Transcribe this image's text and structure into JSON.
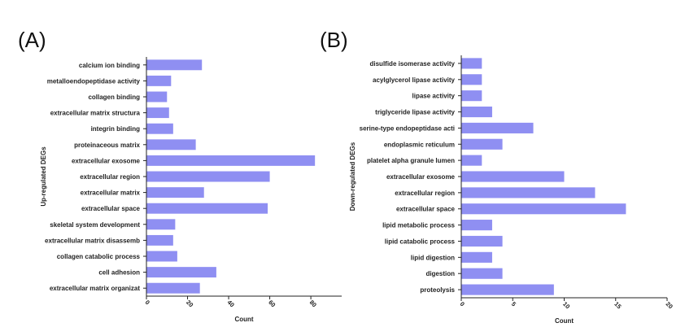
{
  "chart_data": [
    {
      "type": "bar",
      "orientation": "horizontal",
      "panel_label": "(A)",
      "ylabel": "Up-regulated DEGs",
      "xlabel": "Count",
      "xlim": [
        0,
        95
      ],
      "xticks": [
        0,
        20,
        40,
        60,
        80
      ],
      "categories": [
        "calcium ion binding",
        "metalloendopeptidase activity",
        "collagen binding",
        "extracellular matrix structura",
        "integrin binding",
        "proteinaceous matrix",
        "extracellular exosome",
        "extracellular region",
        "extracellular matrix",
        "extracellular space",
        "skeletal system development",
        "extracellular matrix disassemb",
        "collagen catabolic process",
        "cell adhesion",
        "extracellular matrix organizat"
      ],
      "values": [
        27,
        12,
        10,
        11,
        13,
        24,
        82,
        60,
        28,
        59,
        14,
        13,
        15,
        34,
        26
      ]
    },
    {
      "type": "bar",
      "orientation": "horizontal",
      "panel_label": "(B)",
      "ylabel": "Down-regulated DEGs",
      "xlabel": "Count",
      "xlim": [
        0,
        20
      ],
      "xticks": [
        0,
        5,
        10,
        15,
        20
      ],
      "categories": [
        "disulfide isomerase activity",
        "acylglycerol lipase activity",
        "lipase activity",
        "triglyceride lipase activity",
        "serine-type endopeptidase acti",
        "endoplasmic reticulum",
        "platelet alpha granule lumen",
        "extracellular exosome",
        "extracellular region",
        "extracellular space",
        "lipid metabolic process",
        "lipid catabolic process",
        "lipid digestion",
        "digestion",
        "proteolysis"
      ],
      "values": [
        2,
        2,
        2,
        3,
        7,
        4,
        2,
        10,
        13,
        16,
        3,
        4,
        3,
        4,
        9
      ]
    }
  ]
}
